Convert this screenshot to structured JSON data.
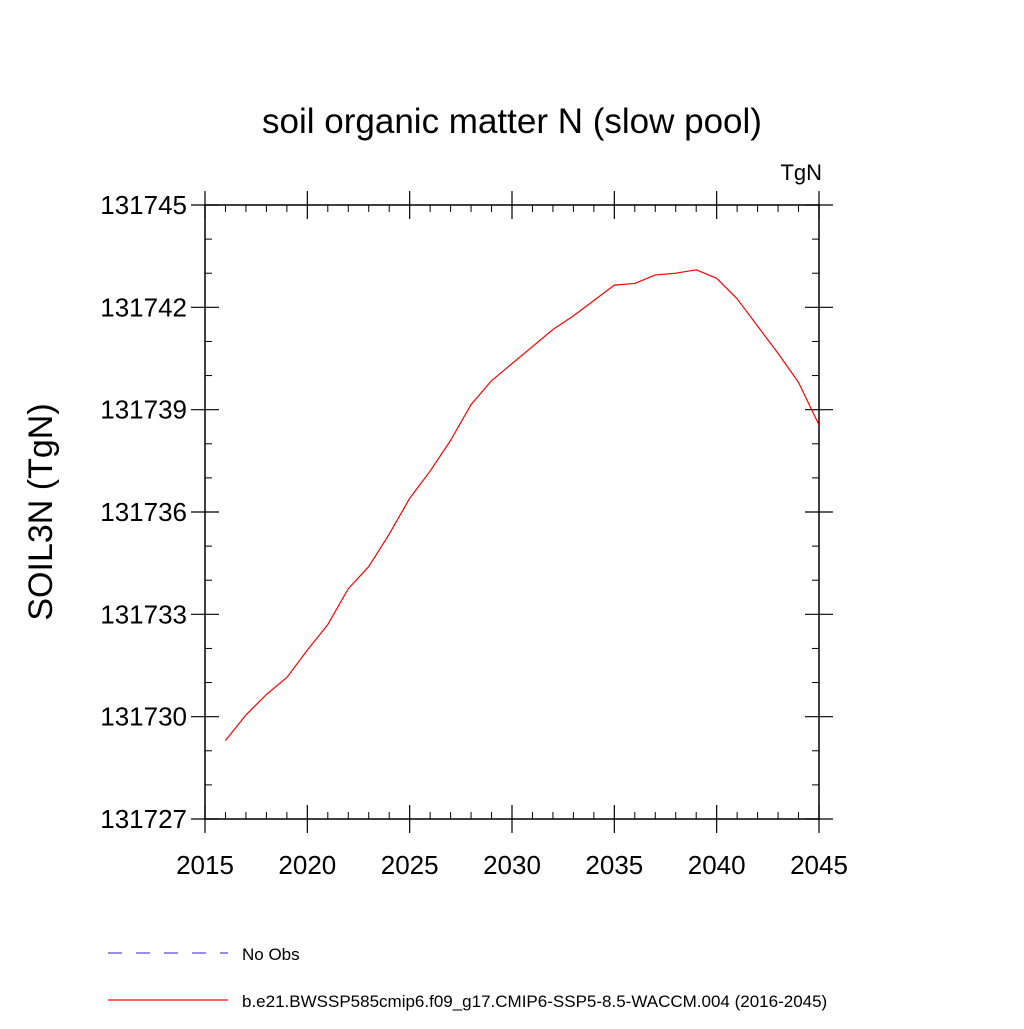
{
  "chart_data": {
    "type": "line",
    "title": "soil organic matter N (slow pool)",
    "units_label": "TgN",
    "ylabel": "SOIL3N  (TgN)",
    "xlabel": "",
    "xlim": [
      2015,
      2045
    ],
    "ylim": [
      131727,
      131745
    ],
    "x_ticks": [
      2015,
      2020,
      2025,
      2030,
      2035,
      2040,
      2045
    ],
    "y_ticks": [
      131727,
      131730,
      131733,
      131736,
      131739,
      131742,
      131745
    ],
    "x_minor_step": 1,
    "y_minor_step": 1,
    "grid": false,
    "legend_position": "bottom",
    "series": [
      {
        "name": "No Obs",
        "color": "#5a4fcf",
        "dash": "dashed",
        "x": [],
        "y": []
      },
      {
        "name": "b.e21.BWSSP585cmip6.f09_g17.CMIP6-SSP5-8.5-WACCM.004 (2016-2045)",
        "color": "#ff0000",
        "dash": "solid",
        "x": [
          2016,
          2017,
          2018,
          2019,
          2020,
          2021,
          2022,
          2023,
          2024,
          2025,
          2026,
          2027,
          2028,
          2029,
          2030,
          2031,
          2032,
          2033,
          2034,
          2035,
          2036,
          2037,
          2038,
          2039,
          2040,
          2041,
          2042,
          2043,
          2044,
          2045
        ],
        "y": [
          131729.3,
          131730.05,
          131730.65,
          131731.15,
          131731.95,
          131732.7,
          131733.75,
          131734.4,
          131735.35,
          131736.4,
          131737.2,
          131738.1,
          131739.15,
          131739.85,
          131740.35,
          131740.85,
          131741.35,
          131741.75,
          131742.2,
          131742.65,
          131742.7,
          131742.95,
          131743.0,
          131743.1,
          131742.85,
          131742.25,
          131741.45,
          131740.65,
          131739.8,
          131738.55
        ]
      }
    ]
  }
}
